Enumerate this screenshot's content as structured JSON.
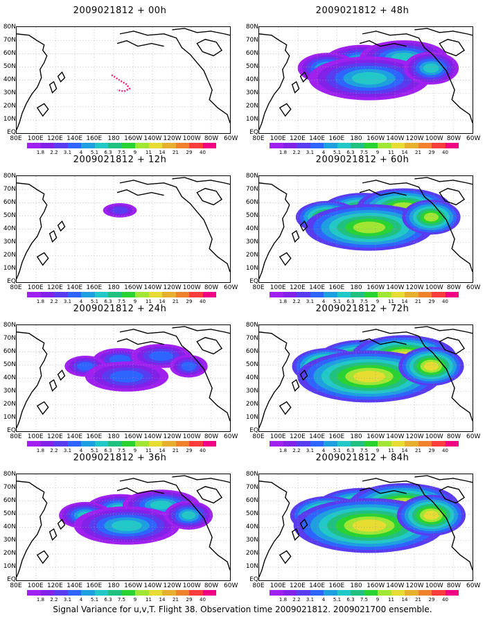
{
  "caption": "Signal Variance for u,v,T. Flight 38. Observation time 2009021812. 2009021700 ensemble.",
  "panels": [
    {
      "title": "2009021812 + 00h",
      "intensity": 0.2
    },
    {
      "title": "2009021812 + 12h",
      "intensity": 0.35
    },
    {
      "title": "2009021812 + 24h",
      "intensity": 0.55
    },
    {
      "title": "2009021812 + 36h",
      "intensity": 0.7
    },
    {
      "title": "2009021812 + 48h",
      "intensity": 0.8
    },
    {
      "title": "2009021812 + 60h",
      "intensity": 0.85
    },
    {
      "title": "2009021812 + 72h",
      "intensity": 0.95
    },
    {
      "title": "2009021812 + 84h",
      "intensity": 1.0
    }
  ],
  "y_labels": [
    "80N",
    "70N",
    "60N",
    "50N",
    "40N",
    "30N",
    "20N",
    "10N",
    "EQ"
  ],
  "x_labels": [
    "80E",
    "100E",
    "120E",
    "140E",
    "160E",
    "180",
    "160W",
    "140W",
    "120W",
    "100W",
    "80W",
    "60W"
  ],
  "colorbar": {
    "labels": [
      "1.8",
      "2.2",
      "3.1",
      "4",
      "5.1",
      "6.3",
      "7.5",
      "9",
      "11",
      "14",
      "21",
      "29",
      "40"
    ],
    "colors": [
      "#a020f0",
      "#8222e8",
      "#5a3cf0",
      "#2e64ff",
      "#1ea0e0",
      "#22c8c8",
      "#20c080",
      "#28d232",
      "#a0e632",
      "#e6dc32",
      "#e6af2d",
      "#f0822d",
      "#fa3c3c",
      "#f00082"
    ]
  }
}
